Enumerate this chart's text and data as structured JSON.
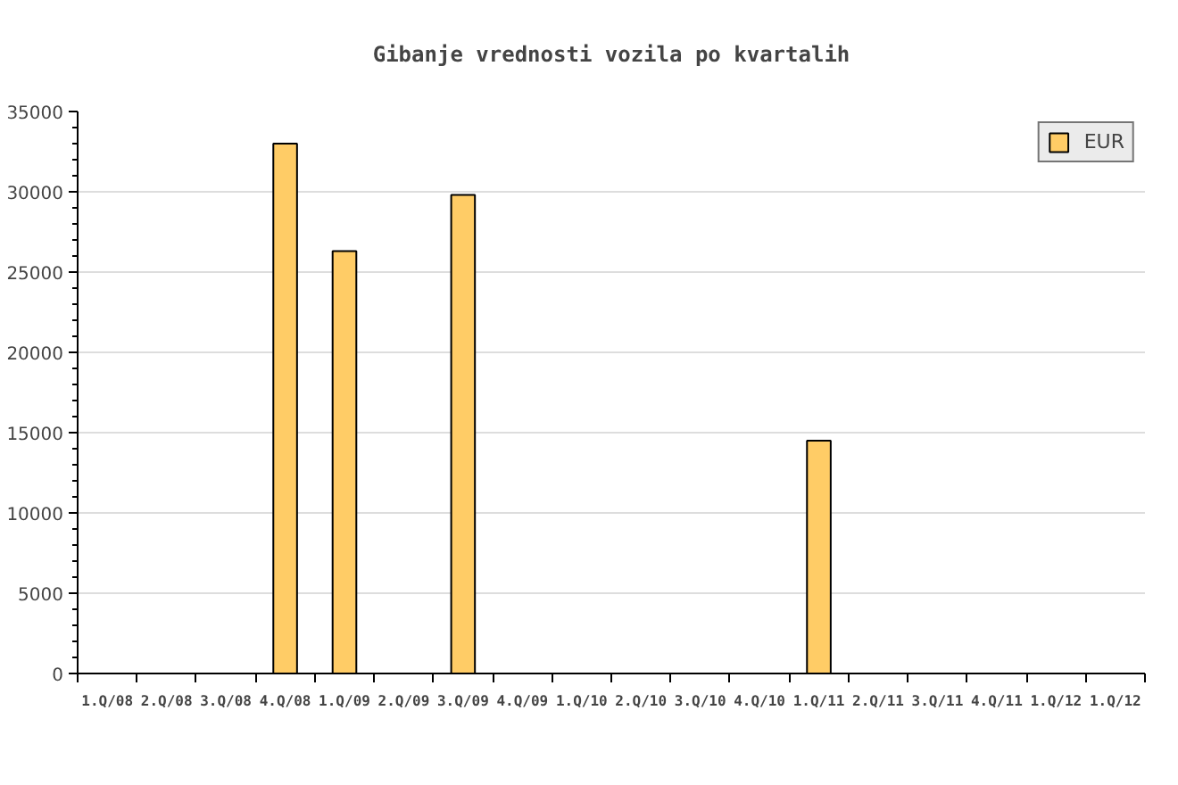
{
  "chart_data": {
    "type": "bar",
    "title": "Gibanje vrednosti vozila po kvartalih",
    "categories": [
      "1.Q/08",
      "2.Q/08",
      "3.Q/08",
      "4.Q/08",
      "1.Q/09",
      "2.Q/09",
      "3.Q/09",
      "4.Q/09",
      "1.Q/10",
      "2.Q/10",
      "3.Q/10",
      "4.Q/10",
      "1.Q/11",
      "2.Q/11",
      "3.Q/11",
      "4.Q/11",
      "1.Q/12",
      "1.Q/12"
    ],
    "series": [
      {
        "name": "EUR",
        "color": "#ffcc66",
        "values": [
          null,
          null,
          null,
          33000,
          26300,
          null,
          29800,
          null,
          null,
          null,
          null,
          null,
          14500,
          null,
          null,
          null,
          null,
          null
        ]
      }
    ],
    "ylim": [
      0,
      35000
    ],
    "yticks": [
      0,
      5000,
      10000,
      15000,
      20000,
      25000,
      30000,
      35000
    ],
    "grid": "y",
    "legend": "top right"
  }
}
